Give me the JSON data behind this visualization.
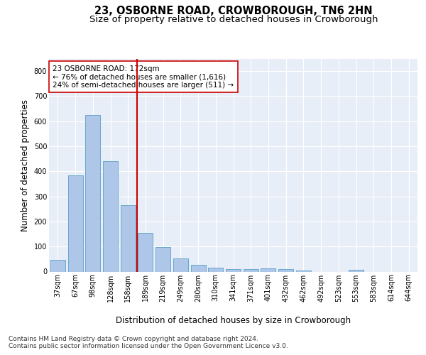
{
  "title": "23, OSBORNE ROAD, CROWBOROUGH, TN6 2HN",
  "subtitle": "Size of property relative to detached houses in Crowborough",
  "xlabel": "Distribution of detached houses by size in Crowborough",
  "ylabel": "Number of detached properties",
  "categories": [
    "37sqm",
    "67sqm",
    "98sqm",
    "128sqm",
    "158sqm",
    "189sqm",
    "219sqm",
    "249sqm",
    "280sqm",
    "310sqm",
    "341sqm",
    "371sqm",
    "401sqm",
    "432sqm",
    "462sqm",
    "492sqm",
    "523sqm",
    "553sqm",
    "583sqm",
    "614sqm",
    "644sqm"
  ],
  "values": [
    47,
    385,
    625,
    440,
    265,
    155,
    97,
    52,
    28,
    17,
    11,
    11,
    12,
    11,
    5,
    0,
    0,
    8,
    0,
    0,
    0
  ],
  "bar_color": "#aec6e8",
  "bar_edge_color": "#5a9fc8",
  "vline_x": 4.5,
  "vline_color": "#cc0000",
  "annotation_text": "23 OSBORNE ROAD: 172sqm\n← 76% of detached houses are smaller (1,616)\n24% of semi-detached houses are larger (511) →",
  "annotation_box_color": "#ffffff",
  "annotation_box_edge": "#cc0000",
  "ylim": [
    0,
    850
  ],
  "yticks": [
    0,
    100,
    200,
    300,
    400,
    500,
    600,
    700,
    800
  ],
  "footer": "Contains HM Land Registry data © Crown copyright and database right 2024.\nContains public sector information licensed under the Open Government Licence v3.0.",
  "bg_color": "#ffffff",
  "plot_bg_color": "#e8eef7",
  "title_fontsize": 10.5,
  "subtitle_fontsize": 9.5,
  "axis_label_fontsize": 8.5,
  "tick_fontsize": 7,
  "footer_fontsize": 6.5,
  "annotation_fontsize": 7.5
}
